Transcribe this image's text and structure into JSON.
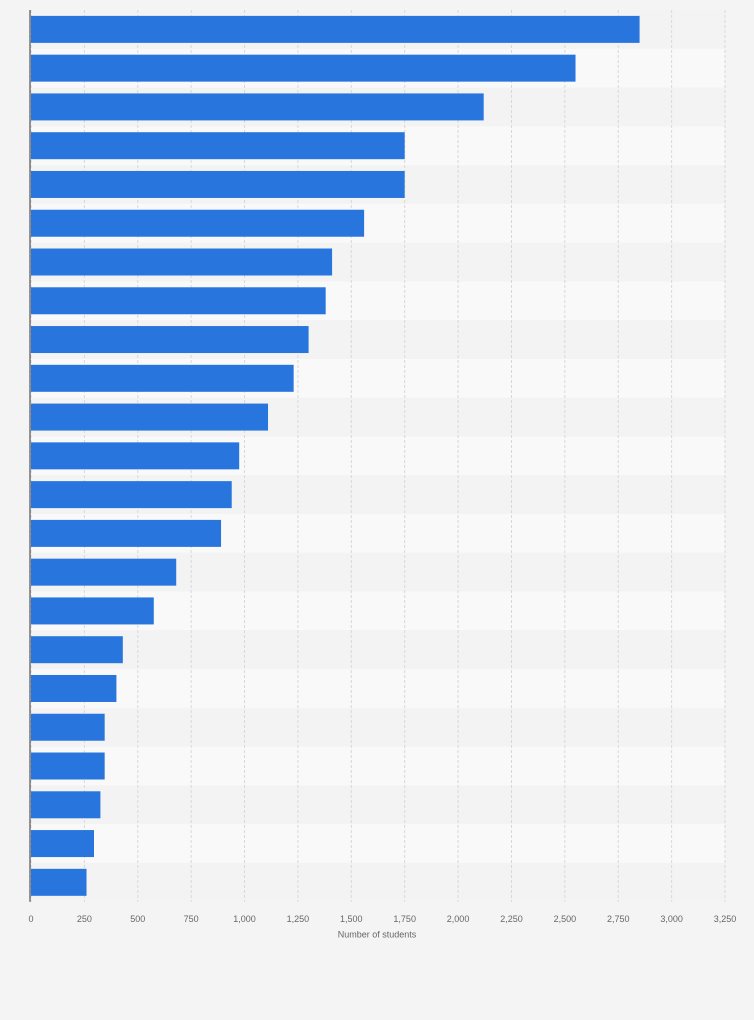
{
  "chart_data": {
    "type": "bar",
    "orientation": "horizontal",
    "x_label": "Number of students",
    "categories": [
      null,
      null,
      null,
      null,
      null,
      null,
      null,
      null,
      null,
      null,
      null,
      null,
      null,
      null,
      null,
      null,
      null,
      null,
      null,
      null,
      null,
      null,
      null
    ],
    "values": [
      2850,
      2550,
      2120,
      1750,
      1750,
      1560,
      1410,
      1380,
      1300,
      1230,
      1110,
      975,
      940,
      890,
      680,
      575,
      430,
      400,
      345,
      345,
      325,
      295,
      260
    ],
    "color": "#2876dd",
    "xlim": [
      0,
      3250
    ],
    "xticks": [
      0,
      250,
      500,
      750,
      {
        "value": 1000,
        "label": "1,000"
      },
      {
        "value": 1250,
        "label": "1,250"
      },
      {
        "value": 1500,
        "label": "1,500"
      },
      {
        "value": 1750,
        "label": "1,750"
      },
      {
        "value": 2000,
        "label": "2,000"
      },
      {
        "value": 2250,
        "label": "2,250"
      },
      {
        "value": 2500,
        "label": "2,500"
      },
      {
        "value": 2750,
        "label": "2,750"
      },
      {
        "value": 3000,
        "label": "3,000"
      },
      {
        "value": 3250,
        "label": "3,250"
      }
    ],
    "grid": true
  }
}
